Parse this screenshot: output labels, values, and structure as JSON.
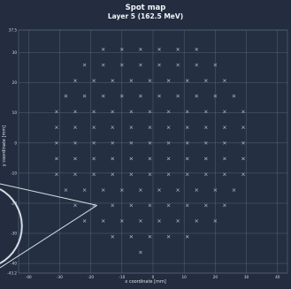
{
  "chart_data": {
    "type": "scatter",
    "title": "Spot map",
    "subtitle": "Layer 5 (162.5 MeV)",
    "xlabel": "x coordinate [mm]",
    "ylabel": "y coordinate [mm]",
    "xlim": [
      -43.2,
      43.2
    ],
    "ylim": [
      -43.2,
      37.5
    ],
    "x_ticks": [
      "-40",
      "-30",
      "-20",
      "-10",
      "0",
      "10",
      "20",
      "30",
      "40"
    ],
    "y_ticks": [
      "37.5",
      "30",
      "20",
      "10",
      "0",
      "-10",
      "-20",
      "-30",
      "-40",
      "-43.2"
    ],
    "grid": true,
    "marker": "x",
    "background_color": "#232d3f",
    "grid_color": "#5b6b82",
    "marker_color": "#9fb4cd",
    "text_color": "#f2f5f8",
    "points": [
      {
        "x": -16,
        "y": 31.1
      },
      {
        "x": -10,
        "y": 31.1
      },
      {
        "x": -4,
        "y": 31.1
      },
      {
        "x": 2,
        "y": 31.1
      },
      {
        "x": 8,
        "y": 31.1
      },
      {
        "x": 14,
        "y": 31.1
      },
      {
        "x": -22,
        "y": 25.9
      },
      {
        "x": -16,
        "y": 25.9
      },
      {
        "x": -10,
        "y": 25.9
      },
      {
        "x": -4,
        "y": 25.9
      },
      {
        "x": 2,
        "y": 25.9
      },
      {
        "x": 8,
        "y": 25.9
      },
      {
        "x": 14,
        "y": 25.9
      },
      {
        "x": 20,
        "y": 25.9
      },
      {
        "x": -25,
        "y": 20.7
      },
      {
        "x": -19,
        "y": 20.7
      },
      {
        "x": -13,
        "y": 20.7
      },
      {
        "x": -7,
        "y": 20.7
      },
      {
        "x": -1,
        "y": 20.7
      },
      {
        "x": 5,
        "y": 20.7
      },
      {
        "x": 11,
        "y": 20.7
      },
      {
        "x": 17,
        "y": 20.7
      },
      {
        "x": 23,
        "y": 20.7
      },
      {
        "x": -28,
        "y": 15.6
      },
      {
        "x": -22,
        "y": 15.6
      },
      {
        "x": -16,
        "y": 15.6
      },
      {
        "x": -10,
        "y": 15.6
      },
      {
        "x": -4,
        "y": 15.6
      },
      {
        "x": 2,
        "y": 15.6
      },
      {
        "x": 8,
        "y": 15.6
      },
      {
        "x": 14,
        "y": 15.6
      },
      {
        "x": 20,
        "y": 15.6
      },
      {
        "x": 26,
        "y": 15.6
      },
      {
        "x": -31,
        "y": 10.4
      },
      {
        "x": -25,
        "y": 10.4
      },
      {
        "x": -19,
        "y": 10.4
      },
      {
        "x": -13,
        "y": 10.4
      },
      {
        "x": -7,
        "y": 10.4
      },
      {
        "x": -1,
        "y": 10.4
      },
      {
        "x": 5,
        "y": 10.4
      },
      {
        "x": 11,
        "y": 10.4
      },
      {
        "x": 17,
        "y": 10.4
      },
      {
        "x": 23,
        "y": 10.4
      },
      {
        "x": 29,
        "y": 10.4
      },
      {
        "x": -31,
        "y": 5.2
      },
      {
        "x": -25,
        "y": 5.2
      },
      {
        "x": -19,
        "y": 5.2
      },
      {
        "x": -13,
        "y": 5.2
      },
      {
        "x": -7,
        "y": 5.2
      },
      {
        "x": -1,
        "y": 5.2
      },
      {
        "x": 5,
        "y": 5.2
      },
      {
        "x": 11,
        "y": 5.2
      },
      {
        "x": 17,
        "y": 5.2
      },
      {
        "x": 23,
        "y": 5.2
      },
      {
        "x": 29,
        "y": 5.2
      },
      {
        "x": -31,
        "y": 0
      },
      {
        "x": -25,
        "y": 0
      },
      {
        "x": -19,
        "y": 0
      },
      {
        "x": -13,
        "y": 0
      },
      {
        "x": -7,
        "y": 0
      },
      {
        "x": -1,
        "y": 0
      },
      {
        "x": 5,
        "y": 0
      },
      {
        "x": 11,
        "y": 0
      },
      {
        "x": 17,
        "y": 0
      },
      {
        "x": 23,
        "y": 0
      },
      {
        "x": 29,
        "y": 0
      },
      {
        "x": -31,
        "y": -5.2
      },
      {
        "x": -25,
        "y": -5.2
      },
      {
        "x": -19,
        "y": -5.2
      },
      {
        "x": -13,
        "y": -5.2
      },
      {
        "x": -7,
        "y": -5.2
      },
      {
        "x": -1,
        "y": -5.2
      },
      {
        "x": 5,
        "y": -5.2
      },
      {
        "x": 11,
        "y": -5.2
      },
      {
        "x": 17,
        "y": -5.2
      },
      {
        "x": 23,
        "y": -5.2
      },
      {
        "x": 29,
        "y": -5.2
      },
      {
        "x": -31,
        "y": -10.4
      },
      {
        "x": -25,
        "y": -10.4
      },
      {
        "x": -19,
        "y": -10.4
      },
      {
        "x": -13,
        "y": -10.4
      },
      {
        "x": -7,
        "y": -10.4
      },
      {
        "x": -1,
        "y": -10.4
      },
      {
        "x": 5,
        "y": -10.4
      },
      {
        "x": 11,
        "y": -10.4
      },
      {
        "x": 17,
        "y": -10.4
      },
      {
        "x": 23,
        "y": -10.4
      },
      {
        "x": 29,
        "y": -10.4
      },
      {
        "x": -28,
        "y": -15.6
      },
      {
        "x": -22,
        "y": -15.6
      },
      {
        "x": -16,
        "y": -15.6
      },
      {
        "x": -10,
        "y": -15.6
      },
      {
        "x": -4,
        "y": -15.6
      },
      {
        "x": 2,
        "y": -15.6
      },
      {
        "x": 8,
        "y": -15.6
      },
      {
        "x": 14,
        "y": -15.6
      },
      {
        "x": 20,
        "y": -15.6
      },
      {
        "x": 26,
        "y": -15.6
      },
      {
        "x": -25,
        "y": -20.7
      },
      {
        "x": -19,
        "y": -20.7
      },
      {
        "x": -13,
        "y": -20.7
      },
      {
        "x": -7,
        "y": -20.7
      },
      {
        "x": -1,
        "y": -20.7
      },
      {
        "x": 5,
        "y": -20.7
      },
      {
        "x": 11,
        "y": -20.7
      },
      {
        "x": 17,
        "y": -20.7
      },
      {
        "x": 23,
        "y": -20.7
      },
      {
        "x": -22,
        "y": -25.9
      },
      {
        "x": -16,
        "y": -25.9
      },
      {
        "x": -10,
        "y": -25.9
      },
      {
        "x": -4,
        "y": -25.9
      },
      {
        "x": 2,
        "y": -25.9
      },
      {
        "x": 8,
        "y": -25.9
      },
      {
        "x": 14,
        "y": -25.9
      },
      {
        "x": 20,
        "y": -25.9
      },
      {
        "x": -13,
        "y": -31.1
      },
      {
        "x": -7,
        "y": -31.1
      },
      {
        "x": -1,
        "y": -31.1
      },
      {
        "x": 5,
        "y": -31.1
      },
      {
        "x": 11,
        "y": -31.1
      },
      {
        "x": -4,
        "y": -36.3
      }
    ]
  }
}
